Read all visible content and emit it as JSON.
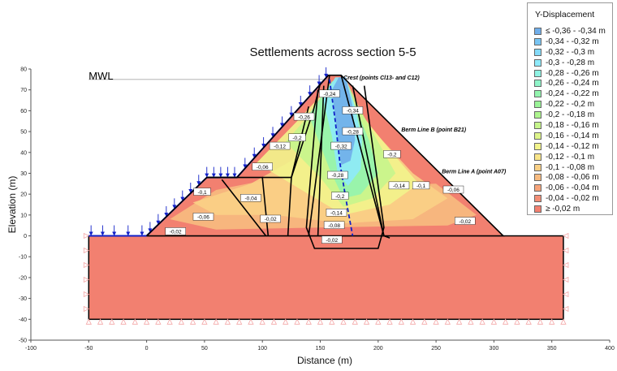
{
  "chart_data": {
    "type": "heatmap",
    "title": "Settlements  across  section  5-5",
    "xlabel": "Distance (m)",
    "ylabel": "Elevation  (m)",
    "xlim": [
      -100,
      400
    ],
    "ylim": [
      -50,
      80
    ],
    "x_ticks": [
      "-100",
      "-50",
      "0",
      "50",
      "100",
      "150",
      "200",
      "250",
      "300",
      "350",
      "400"
    ],
    "y_ticks": [
      "80",
      "70",
      "60",
      "50",
      "40",
      "30",
      "20",
      "10",
      "0",
      "-10",
      "-20",
      "-30",
      "-40",
      "-50"
    ],
    "annotations": [
      {
        "text": "MWL",
        "x": -50,
        "y": 75
      },
      {
        "text": "Crest (points Cl13- and C12)",
        "x": 170,
        "y": 75
      },
      {
        "text": "Berm Line B (point B21)",
        "x": 220,
        "y": 50
      },
      {
        "text": "Berm Line A (point A07)",
        "x": 255,
        "y": 30
      }
    ],
    "contour_labels": [
      {
        "text": "-0,24",
        "x": 158,
        "y": 68
      },
      {
        "text": "-0,34",
        "x": 178,
        "y": 60
      },
      {
        "text": "-0,26",
        "x": 136,
        "y": 57
      },
      {
        "text": "-0,28",
        "x": 178,
        "y": 50
      },
      {
        "text": "-0,2",
        "x": 130,
        "y": 47
      },
      {
        "text": "-0,12",
        "x": 115,
        "y": 43
      },
      {
        "text": "-0,32",
        "x": 168,
        "y": 43
      },
      {
        "text": "-0,2",
        "x": 212,
        "y": 39
      },
      {
        "text": "-0,06",
        "x": 100,
        "y": 33
      },
      {
        "text": "-0,28",
        "x": 165,
        "y": 29
      },
      {
        "text": "-0,14",
        "x": 218,
        "y": 24
      },
      {
        "text": "-0,1",
        "x": 237,
        "y": 24
      },
      {
        "text": "-0,06",
        "x": 265,
        "y": 22
      },
      {
        "text": "-0,1",
        "x": 48,
        "y": 21
      },
      {
        "text": "-0,04",
        "x": 90,
        "y": 18
      },
      {
        "text": "-0,2",
        "x": 167,
        "y": 19
      },
      {
        "text": "-0,06",
        "x": 49,
        "y": 9
      },
      {
        "text": "-0,14",
        "x": 164,
        "y": 11
      },
      {
        "text": "-0,02",
        "x": 107,
        "y": 8
      },
      {
        "text": "-0,02",
        "x": 275,
        "y": 7
      },
      {
        "text": "-0,08",
        "x": 162,
        "y": 5
      },
      {
        "text": "-0,02",
        "x": 25,
        "y": 2
      },
      {
        "text": "-0,02",
        "x": 160,
        "y": -2
      }
    ],
    "legend": {
      "title": "Y-Displacement",
      "placement": "top-right",
      "items": [
        {
          "label": "≤ -0,36 - -0,34 m",
          "color": "#70aeea"
        },
        {
          "label": "-0,34 - -0,32 m",
          "color": "#78c4f2"
        },
        {
          "label": "-0,32 - -0,3 m",
          "color": "#84daf8"
        },
        {
          "label": "-0,3 - -0,28 m",
          "color": "#8eeafa"
        },
        {
          "label": "-0,28 - -0,26 m",
          "color": "#8ff2e3"
        },
        {
          "label": "-0,26 - -0,24 m",
          "color": "#8ff4c9"
        },
        {
          "label": "-0,24 - -0,22 m",
          "color": "#93f4ae"
        },
        {
          "label": "-0,22 - -0,2 m",
          "color": "#9af397"
        },
        {
          "label": "-0,2 - -0,18 m",
          "color": "#aef58f"
        },
        {
          "label": "-0,18 - -0,16 m",
          "color": "#c6f58c"
        },
        {
          "label": "-0,16 - -0,14 m",
          "color": "#def58b"
        },
        {
          "label": "-0,14 - -0,12 m",
          "color": "#f2f48c"
        },
        {
          "label": "-0,12 - -0,1 m",
          "color": "#f8e58a"
        },
        {
          "label": "-0,1 - -0,08 m",
          "color": "#f9d086"
        },
        {
          "label": "-0,08 - -0,06 m",
          "color": "#f7bb80"
        },
        {
          "label": "-0,06 - -0,04 m",
          "color": "#f6a47a"
        },
        {
          "label": "-0,04 - -0,02 m",
          "color": "#f38e76"
        },
        {
          "label": "≥ -0,02 m",
          "color": "#f28070"
        }
      ]
    }
  }
}
